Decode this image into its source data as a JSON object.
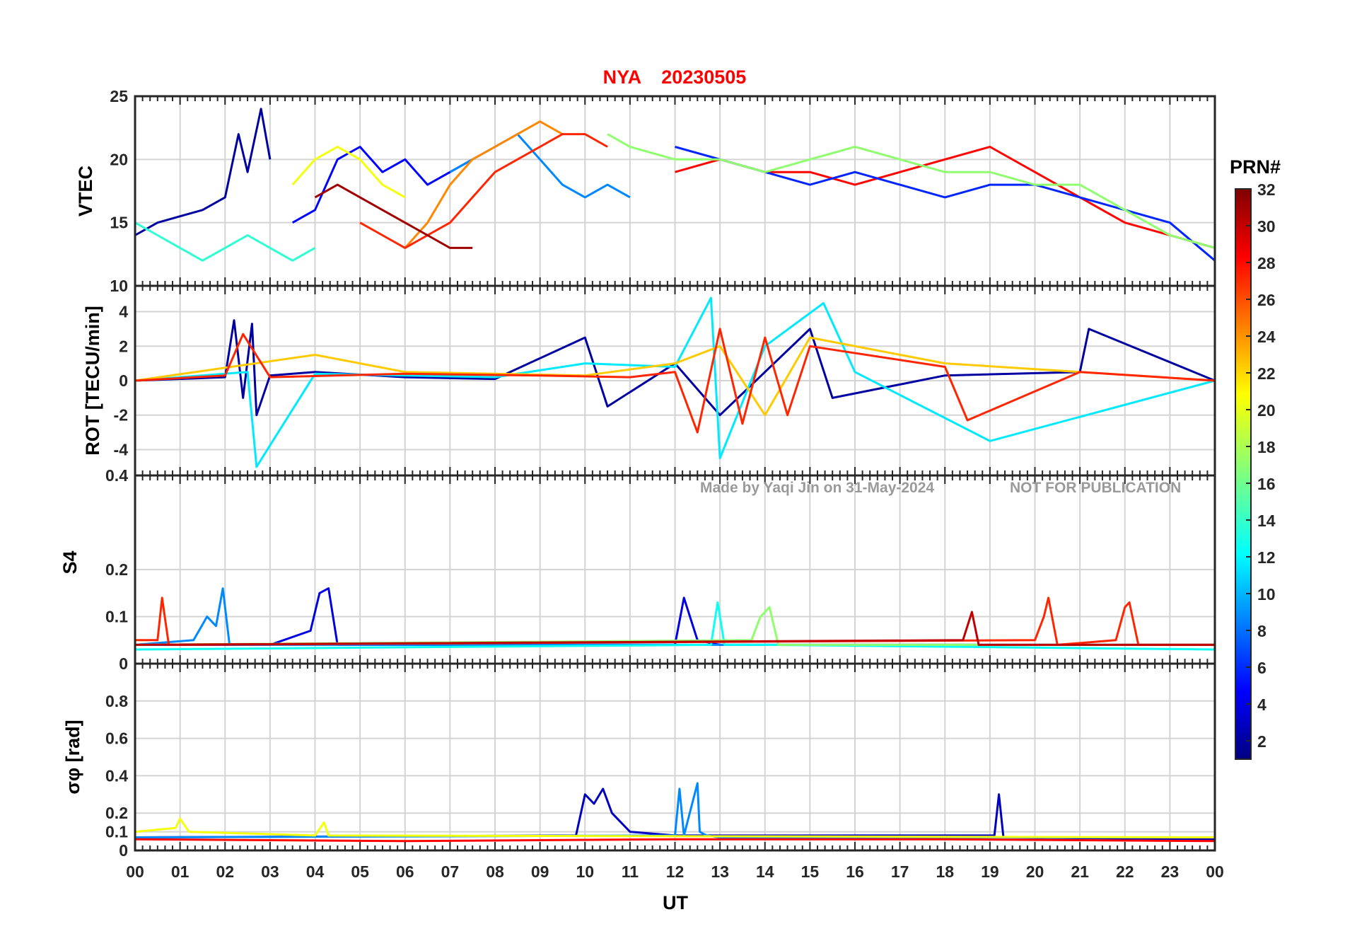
{
  "title": {
    "station": "NYA",
    "date": "20230505",
    "color": "#ff0000"
  },
  "watermark": {
    "left": "Made by Yaqi Jin on 31-May-2024",
    "right": "NOT FOR PUBLICATION"
  },
  "x_axis": {
    "label": "UT",
    "ticks": [
      "00",
      "01",
      "02",
      "03",
      "04",
      "05",
      "06",
      "07",
      "08",
      "09",
      "10",
      "11",
      "12",
      "13",
      "14",
      "15",
      "16",
      "17",
      "18",
      "19",
      "20",
      "21",
      "22",
      "23",
      "00"
    ]
  },
  "colorbar": {
    "label": "PRN#",
    "range": [
      1,
      32
    ],
    "ticks": [
      2,
      4,
      6,
      8,
      10,
      12,
      14,
      16,
      18,
      20,
      22,
      24,
      26,
      28,
      30,
      32
    ],
    "colormap": "jet"
  },
  "chart_data": [
    {
      "type": "line",
      "panel": "vtec",
      "ylabel": "VTEC",
      "ylim": [
        10,
        25
      ],
      "yticks": [
        10,
        15,
        20,
        25
      ],
      "xlim": [
        0,
        24
      ],
      "grid": true,
      "series": [
        {
          "prn": 2,
          "x": [
            0,
            0.5,
            1,
            1.5,
            2,
            2.3,
            2.5,
            2.8,
            3
          ],
          "y": [
            14,
            15,
            15.5,
            16,
            17,
            22,
            19,
            24,
            20
          ]
        },
        {
          "prn": 5,
          "x": [
            3.5,
            4,
            4.5,
            5,
            5.5,
            6,
            6.5,
            7,
            7.5
          ],
          "y": [
            15,
            16,
            20,
            21,
            19,
            20,
            18,
            19,
            20
          ]
        },
        {
          "prn": 9,
          "x": [
            7,
            7.5,
            8,
            8.5,
            9,
            9.5,
            10,
            10.5,
            11
          ],
          "y": [
            19,
            20,
            21,
            22,
            20,
            18,
            17,
            18,
            17
          ]
        },
        {
          "prn": 14,
          "x": [
            0,
            0.5,
            1,
            1.5,
            2,
            2.5,
            3,
            3.5,
            4
          ],
          "y": [
            15,
            14,
            13,
            12,
            13,
            14,
            13,
            12,
            13
          ]
        },
        {
          "prn": 20,
          "x": [
            3.5,
            4,
            4.5,
            5,
            5.5,
            6
          ],
          "y": [
            18,
            20,
            21,
            20,
            18,
            17
          ]
        },
        {
          "prn": 24,
          "x": [
            6,
            6.5,
            7,
            7.5,
            8,
            8.5,
            9,
            9.5
          ],
          "y": [
            13,
            15,
            18,
            20,
            21,
            22,
            23,
            22
          ]
        },
        {
          "prn": 27,
          "x": [
            5,
            5.5,
            6,
            6.5,
            7,
            7.5,
            8,
            8.5,
            9,
            9.5,
            10,
            10.5
          ],
          "y": [
            15,
            14,
            13,
            14,
            15,
            17,
            19,
            20,
            21,
            22,
            22,
            21
          ]
        },
        {
          "prn": 31,
          "x": [
            4,
            4.5,
            5,
            5.5,
            6,
            6.5,
            7,
            7.5
          ],
          "y": [
            17,
            18,
            17,
            16,
            15,
            14,
            13,
            13
          ]
        },
        {
          "prn": 28,
          "x": [
            12,
            13,
            14,
            15,
            16,
            17,
            18,
            19,
            20,
            21,
            22,
            23,
            24
          ],
          "y": [
            19,
            20,
            19,
            19,
            18,
            19,
            20,
            21,
            19,
            17,
            15,
            14,
            13
          ]
        },
        {
          "prn": 6,
          "x": [
            12,
            13,
            14,
            15,
            16,
            17,
            18,
            19,
            20,
            21,
            22,
            23,
            24
          ],
          "y": [
            21,
            20,
            19,
            18,
            19,
            18,
            17,
            18,
            18,
            17,
            16,
            15,
            12
          ]
        },
        {
          "prn": 17,
          "x": [
            10.5,
            11,
            12,
            13,
            14,
            15,
            16,
            17,
            18,
            19,
            20,
            21,
            22,
            23,
            24
          ],
          "y": [
            22,
            21,
            20,
            20,
            19,
            20,
            21,
            20,
            19,
            19,
            18,
            18,
            16,
            14,
            13
          ]
        }
      ]
    },
    {
      "type": "line",
      "panel": "rot",
      "ylabel": "ROT [TECU/min]",
      "ylim": [
        -5.5,
        5.5
      ],
      "yticks": [
        -4,
        -2,
        0,
        2,
        4
      ],
      "xlim": [
        0,
        24
      ],
      "grid": true,
      "series": [
        {
          "prn": 2,
          "x": [
            0,
            2,
            2.2,
            2.4,
            2.6,
            2.7,
            3,
            4,
            6,
            8,
            10,
            10.5,
            12,
            13,
            15,
            15.5,
            18,
            21,
            21.2,
            24
          ],
          "y": [
            0,
            0.2,
            3.5,
            -1,
            3.3,
            -2,
            0.3,
            0.5,
            0.2,
            0.1,
            2.5,
            -1.5,
            1,
            -2,
            3,
            -1,
            0.3,
            0.5,
            3,
            0
          ]
        },
        {
          "prn": 12,
          "x": [
            0,
            2.5,
            2.7,
            4,
            8,
            10,
            12,
            12.8,
            13,
            14,
            15.3,
            16,
            19,
            24
          ],
          "y": [
            0,
            0.5,
            -5,
            0.4,
            0.2,
            1,
            0.8,
            4.8,
            -4.5,
            2,
            4.5,
            0.5,
            -3.5,
            0
          ]
        },
        {
          "prn": 22,
          "x": [
            0,
            4,
            6,
            10,
            12,
            13,
            14,
            15,
            18,
            24
          ],
          "y": [
            0,
            1.5,
            0.5,
            0.3,
            1,
            2,
            -2,
            2.5,
            1,
            0
          ]
        },
        {
          "prn": 27,
          "x": [
            0,
            2,
            2.4,
            3,
            6,
            9,
            11,
            12,
            12.5,
            13,
            13.5,
            14,
            14.5,
            15,
            18,
            18.5,
            21,
            24
          ],
          "y": [
            0,
            0.3,
            2.7,
            0.2,
            0.4,
            0.3,
            0.2,
            0.5,
            -3,
            3,
            -2.5,
            2.5,
            -2,
            2,
            0.8,
            -2.3,
            0.5,
            0
          ]
        }
      ]
    },
    {
      "type": "line",
      "panel": "s4",
      "ylabel": "S4",
      "ylim": [
        0,
        0.4
      ],
      "yticks": [
        0,
        0.1,
        0.2,
        0.4
      ],
      "xlim": [
        0,
        24
      ],
      "grid": true,
      "series": [
        {
          "prn": 4,
          "x": [
            0,
            3,
            3.9,
            4.1,
            4.3,
            4.5,
            6,
            12,
            12.2,
            12.5,
            13,
            24
          ],
          "y": [
            0.04,
            0.04,
            0.07,
            0.15,
            0.16,
            0.04,
            0.04,
            0.04,
            0.14,
            0.05,
            0.04,
            0.04
          ]
        },
        {
          "prn": 9,
          "x": [
            0,
            1.3,
            1.6,
            1.8,
            1.95,
            2.1,
            3,
            24
          ],
          "y": [
            0.04,
            0.05,
            0.1,
            0.08,
            0.16,
            0.04,
            0.04,
            0.04
          ]
        },
        {
          "prn": 13,
          "x": [
            0,
            12.8,
            12.95,
            13.1,
            14,
            24
          ],
          "y": [
            0.03,
            0.04,
            0.13,
            0.04,
            0.04,
            0.03
          ]
        },
        {
          "prn": 17,
          "x": [
            0,
            13.7,
            13.9,
            14.1,
            14.3,
            24
          ],
          "y": [
            0.04,
            0.05,
            0.1,
            0.12,
            0.04,
            0.04
          ]
        },
        {
          "prn": 27,
          "x": [
            0,
            0.5,
            0.6,
            0.75,
            1,
            20,
            20.2,
            20.3,
            20.5,
            21.8,
            22,
            22.1,
            22.3,
            24
          ],
          "y": [
            0.05,
            0.05,
            0.14,
            0.04,
            0.04,
            0.05,
            0.1,
            0.14,
            0.04,
            0.05,
            0.12,
            0.13,
            0.04,
            0.04
          ]
        },
        {
          "prn": 30,
          "x": [
            0,
            18.4,
            18.6,
            18.75,
            24
          ],
          "y": [
            0.04,
            0.05,
            0.11,
            0.04,
            0.04
          ]
        }
      ]
    },
    {
      "type": "line",
      "panel": "sigma_phi",
      "ylabel": "σφ [rad]",
      "ylim": [
        0,
        1
      ],
      "yticks": [
        0,
        0.1,
        0.2,
        0.4,
        0.6,
        0.8
      ],
      "xlim": [
        0,
        24
      ],
      "grid": true,
      "series": [
        {
          "prn": 3,
          "x": [
            0,
            9.8,
            10,
            10.2,
            10.4,
            10.6,
            11,
            12,
            19.1,
            19.2,
            19.3,
            24
          ],
          "y": [
            0.07,
            0.08,
            0.3,
            0.25,
            0.33,
            0.2,
            0.1,
            0.08,
            0.08,
            0.3,
            0.07,
            0.06
          ]
        },
        {
          "prn": 9,
          "x": [
            0,
            12,
            12.1,
            12.2,
            12.5,
            12.55,
            12.7,
            13,
            24
          ],
          "y": [
            0.07,
            0.08,
            0.33,
            0.08,
            0.36,
            0.1,
            0.08,
            0.07,
            0.07
          ]
        },
        {
          "prn": 20,
          "x": [
            0,
            0.9,
            1,
            1.2,
            4,
            4.2,
            4.3,
            24
          ],
          "y": [
            0.1,
            0.12,
            0.17,
            0.1,
            0.08,
            0.15,
            0.08,
            0.07
          ]
        },
        {
          "prn": 28,
          "x": [
            0,
            6,
            12,
            18,
            24
          ],
          "y": [
            0.06,
            0.05,
            0.06,
            0.06,
            0.05
          ]
        }
      ]
    }
  ]
}
